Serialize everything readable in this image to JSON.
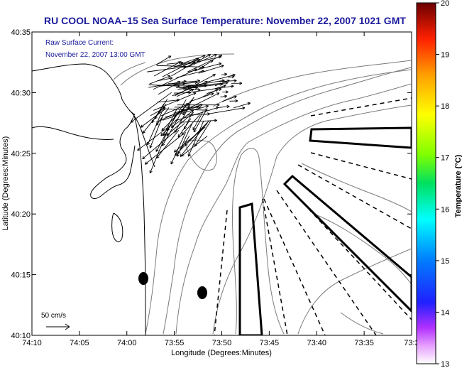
{
  "title": "RU COOL  NOAA–15  Sea Surface Temperature:  November 22, 2007 1021 GMT",
  "annotation": {
    "line1": "Raw Surface Current:",
    "line2": "November 22, 2007 13:00 GMT"
  },
  "scale": {
    "label": "50 cm/s"
  },
  "axes": {
    "xlabel": "Longitude (Degrees:Minutes)",
    "ylabel": "Latitude (Degrees:Minutes)",
    "xticks": [
      "74:10",
      "74:05",
      "74:00",
      "73:55",
      "73:50",
      "73:45",
      "73:40",
      "73:35",
      "73:3"
    ],
    "yticks": [
      "40:35",
      "40:30",
      "40:25",
      "40:20",
      "40:15",
      "40:10"
    ]
  },
  "colorbar": {
    "label": "Temperature (°C)",
    "ticks": [
      "20",
      "19",
      "18",
      "17",
      "16",
      "15",
      "14",
      "13"
    ],
    "min": 13,
    "max": 20
  },
  "colors": {
    "title": "#1a1a9c",
    "annotation": "#1a1a9c",
    "contour": "#7a7a7a",
    "coast": "#000000",
    "vectors": "#000000"
  }
}
